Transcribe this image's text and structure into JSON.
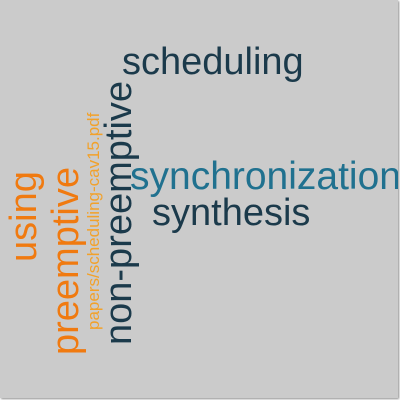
{
  "words": {
    "scheduling": {
      "text": "scheduling",
      "color": "#1b3a4b"
    },
    "synchronization": {
      "text": "synchronization",
      "color": "#20718f"
    },
    "synthesis": {
      "text": "synthesis",
      "color": "#1b3a4b"
    },
    "using": {
      "text": "using",
      "color": "#f07a10"
    },
    "preemptive": {
      "text": "preemptive",
      "color": "#f07a10"
    },
    "pdf": {
      "text": "papers/scheduling-cav15.pdf",
      "color": "#f2a12a"
    },
    "nonpreemptive": {
      "text": "non-preemptive",
      "color": "#1b3a4b"
    }
  }
}
